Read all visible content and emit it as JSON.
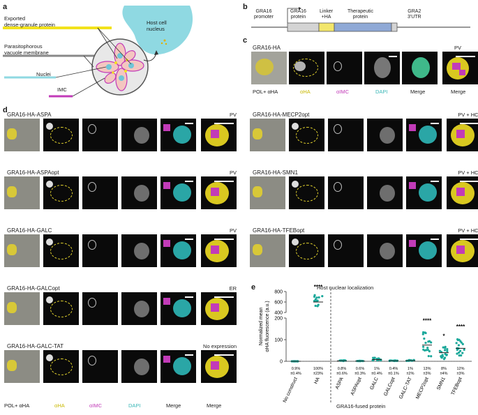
{
  "panels": {
    "a": "a",
    "b": "b",
    "c": "c",
    "d": "d",
    "e": "e"
  },
  "panel_a": {
    "exported_protein": "Exported\ndense-granule protein",
    "pv_membrane": "Parasitophorous\nvacuole membrane",
    "host_nucleus": "Host cell\nnucleus",
    "nuclei": "Nuclei",
    "imc": "IMC",
    "colors": {
      "protein": "#f2e21c",
      "pv": "#888888",
      "nucleus": "#7fd7e0",
      "imc": "#c23bb8"
    }
  },
  "panel_b": {
    "segments": [
      "GRA16\npromoter",
      "GRA16\nprotein",
      "Linker\n+HA",
      "Therapeutic\nprotein",
      "GRA2\n3'UTR"
    ],
    "colors": {
      "protein": "#d4d4d4",
      "linker": "#f2e66b",
      "therapeutic": "#8fa9d6"
    }
  },
  "channels": [
    "POL+ αHA",
    "αHA",
    "αIMC",
    "DAPI",
    "Merge",
    "Merge"
  ],
  "channel_colors": {
    "ha": "#d6c928",
    "imc": "#c23bb8",
    "dapi": "#5fc7c7",
    "black": "#222222"
  },
  "panel_c": {
    "title": "GRA16-HA",
    "zoom_label": "PV"
  },
  "panel_d": {
    "left": [
      {
        "title": "GRA16-HA-ASPA",
        "zoom": "PV"
      },
      {
        "title": "GRA16-HA-ASPAopt",
        "zoom": "PV"
      },
      {
        "title": "GRA16-HA-GALC",
        "zoom": "PV"
      },
      {
        "title": "GRA16-HA-GALCopt",
        "zoom": "ER"
      },
      {
        "title": "GRA16-HA-GALC-TAT",
        "zoom": "No expression"
      }
    ],
    "right": [
      {
        "title": "GRA16-HA-MECP2opt",
        "zoom": "PV + HCN"
      },
      {
        "title": "GRA16-HA-SMN1",
        "zoom": "PV + HCN"
      },
      {
        "title": "GRA16-HA-TFEBopt",
        "zoom": "PV + HCN"
      }
    ]
  },
  "chart_data": {
    "type": "scatter",
    "title": "Host nuclear localization",
    "ylabel": "Normalized mean\nαHA fluorescence (a.u.)",
    "xlabel": "GRA16-fused protein",
    "y_ticks_upper": [
      "800",
      "600",
      "400"
    ],
    "y_ticks_lower": [
      "200",
      "100",
      "0"
    ],
    "categories": [
      "No construct",
      "HA",
      "ASPA",
      "ASPAopt",
      "GALC",
      "GALCopt",
      "GALC-TAT",
      "MECP2opt",
      "SMN1",
      "TFEBopt"
    ],
    "means": [
      0,
      600,
      2,
      1,
      8,
      2,
      3,
      75,
      40,
      60
    ],
    "percent_labels": [
      "0.9%\n±0.4%",
      "100%\n±23%",
      "0.8%\n±0.6%",
      "0.6%\n±0.3%",
      "1%\n±0.4%",
      "0.4%\n±0.1%",
      "1%\n±2%",
      "13%\n±3%",
      "8%\n±4%",
      "12%\n±3%"
    ],
    "significance": [
      "",
      "****",
      "",
      "",
      "",
      "",
      "",
      "****",
      "*",
      "****"
    ],
    "series_color": "#1aa89a"
  }
}
